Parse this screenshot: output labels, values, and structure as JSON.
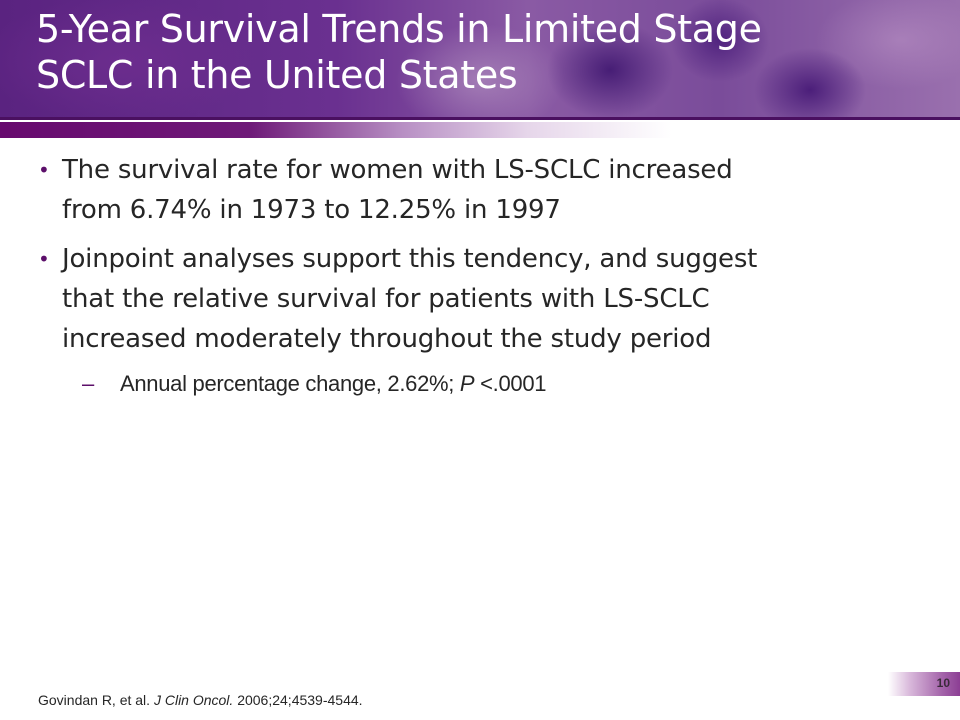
{
  "slide": {
    "title": "5-Year Survival Trends in Limited Stage SCLC in the United States",
    "title_lines": [
      "5-Year Survival Trends in Limited Stage",
      "SCLC in the United States"
    ],
    "bullets": [
      {
        "marker": "•",
        "lines": [
          "The survival rate for women with LS-SCLC increased",
          "from 6.74% in 1973 to 12.25% in 1997"
        ]
      },
      {
        "marker": "•",
        "lines": [
          "Joinpoint analyses support this tendency, and suggest",
          "that the relative survival for patients with LS-SCLC",
          "increased moderately throughout the study period"
        ],
        "sub_bullets": [
          {
            "marker": "–",
            "text_before": "Annual percentage change, 2.62%; ",
            "italic": "P",
            "text_after": " <.0001"
          }
        ]
      }
    ],
    "reference": {
      "authors": "Govindan R, et al. ",
      "journal": "J Clin Oncol.",
      "details": " 2006;24;4539-4544."
    },
    "page_number": "10"
  },
  "colors": {
    "accent_purple": "#5c0f6a",
    "header_border": "#4a1060",
    "body_text": "#262626",
    "title_text": "#ffffff"
  }
}
